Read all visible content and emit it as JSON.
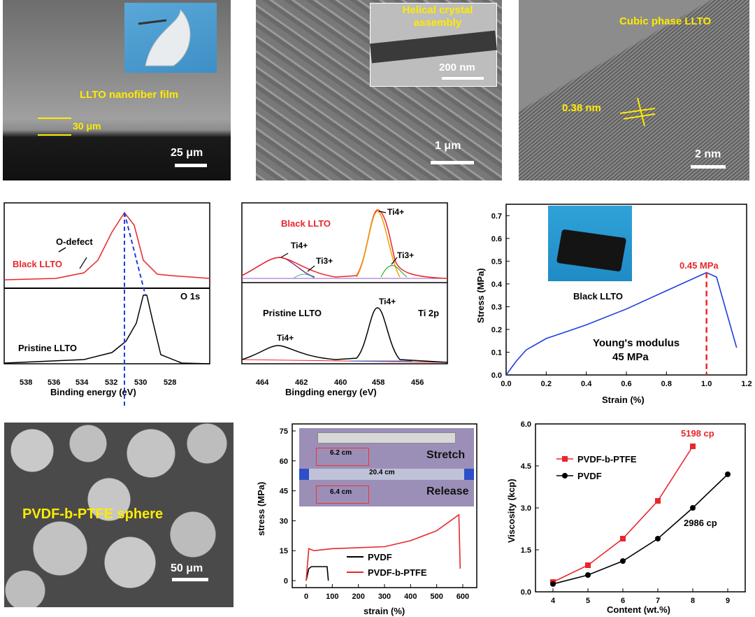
{
  "top_row": {
    "a": {
      "label": "LLTO nanofiber film",
      "thickness": "30 μm",
      "scale": "25 μm"
    },
    "b": {
      "inset_label": "Helical crystal assembly",
      "inset_scale": "200 nm",
      "scale": "1 μm"
    },
    "c": {
      "label": "Cubic phase LLTO",
      "spacing": "0.38 nm",
      "scale": "2 nm"
    }
  },
  "o1s": {
    "black_label": "Black LLTO",
    "pristine_label": "Pristine LLTO",
    "defect_label": "O-defect",
    "region": "O 1s",
    "xlabel": "Binding energy (eV)",
    "ticks": [
      "538",
      "536",
      "534",
      "532",
      "530",
      "528"
    ]
  },
  "ti2p": {
    "black_label": "Black LLTO",
    "pristine_label": "Pristine LLTO",
    "region": "Ti 2p",
    "peak_ti4": "Ti4+",
    "peak_ti3": "Ti3+",
    "xlabel": "Bingding energy (eV)",
    "ticks": [
      "464",
      "462",
      "460",
      "458",
      "456"
    ]
  },
  "stress_llto": {
    "inset_label": "Black LLTO",
    "peak_label": "0.45 MPa",
    "modulus_line1": "Young's modulus",
    "modulus_line2": "45 MPa",
    "xlabel": "Strain (%)",
    "ylabel": "Stress (MPa)",
    "xticks": [
      "0.0",
      "0.2",
      "0.4",
      "0.6",
      "0.8",
      "1.0",
      "1.2"
    ],
    "yticks": [
      "0.0",
      "0.1",
      "0.2",
      "0.3",
      "0.4",
      "0.5",
      "0.6",
      "0.7"
    ]
  },
  "sphere": {
    "label": "PVDF-b-PTFE sphere",
    "scale": "50 μm"
  },
  "stress_pvdf": {
    "inset": {
      "len1": "6.2 cm",
      "len2": "20.4 cm",
      "len3": "6.4 cm",
      "stretch": "Stretch",
      "release": "Release"
    },
    "xlabel": "strain (%)",
    "ylabel": "stress (MPa)",
    "xticks": [
      "0",
      "100",
      "200",
      "300",
      "400",
      "500",
      "600"
    ],
    "yticks": [
      "0",
      "15",
      "30",
      "45",
      "60",
      "75"
    ],
    "legend": [
      "PVDF",
      "PVDF-b-PTFE"
    ]
  },
  "chart_data": [
    {
      "type": "line",
      "title": "",
      "xlabel": "Strain (%)",
      "ylabel": "Stress (MPa)",
      "xlim": [
        0,
        1.2
      ],
      "ylim": [
        0,
        0.75
      ],
      "series": [
        {
          "name": "Black LLTO",
          "x": [
            0,
            0.05,
            0.1,
            0.2,
            0.3,
            0.4,
            0.6,
            0.8,
            1.0,
            1.05,
            1.15
          ],
          "y": [
            0,
            0.06,
            0.11,
            0.16,
            0.19,
            0.22,
            0.29,
            0.37,
            0.45,
            0.43,
            0.12
          ]
        }
      ]
    },
    {
      "type": "line",
      "xlabel": "strain (%)",
      "ylabel": "stress (MPa)",
      "xlim": [
        0,
        600
      ],
      "ylim": [
        0,
        75
      ],
      "series": [
        {
          "name": "PVDF",
          "x": [
            0,
            10,
            20,
            80,
            85
          ],
          "y": [
            0,
            6,
            7,
            7,
            0
          ]
        },
        {
          "name": "PVDF-b-PTFE",
          "x": [
            0,
            10,
            30,
            100,
            300,
            400,
            500,
            585,
            590
          ],
          "y": [
            0,
            16,
            15,
            16,
            17,
            20,
            25,
            33,
            6
          ]
        }
      ]
    },
    {
      "type": "line",
      "xlabel": "Content (wt.%)",
      "ylabel": "Viscosity (kcp)",
      "xlim": [
        3.5,
        9.5
      ],
      "ylim": [
        0,
        6
      ],
      "annotations": [
        "5198 cp",
        "2986 cp"
      ],
      "series": [
        {
          "name": "PVDF-b-PTFE",
          "x": [
            4,
            5,
            6,
            7,
            8
          ],
          "y": [
            0.35,
            0.95,
            1.9,
            3.25,
            5.2
          ]
        },
        {
          "name": "PVDF",
          "x": [
            4,
            5,
            6,
            7,
            8,
            9
          ],
          "y": [
            0.28,
            0.6,
            1.1,
            1.9,
            3.0,
            4.2
          ]
        }
      ]
    }
  ],
  "viscosity": {
    "xlabel": "Content (wt.%)",
    "ylabel": "Viscosity (kcp)",
    "xticks": [
      "4",
      "5",
      "6",
      "7",
      "8",
      "9"
    ],
    "yticks": [
      "0.0",
      "1.5",
      "3.0",
      "4.5",
      "6.0"
    ],
    "legend": [
      "PVDF-b-PTFE",
      "PVDF"
    ],
    "ann_red": "5198 cp",
    "ann_black": "2986 cp"
  },
  "colors": {
    "red": "#e8262b",
    "blue": "#1f3fe0",
    "yellow": "#ffeb00"
  }
}
